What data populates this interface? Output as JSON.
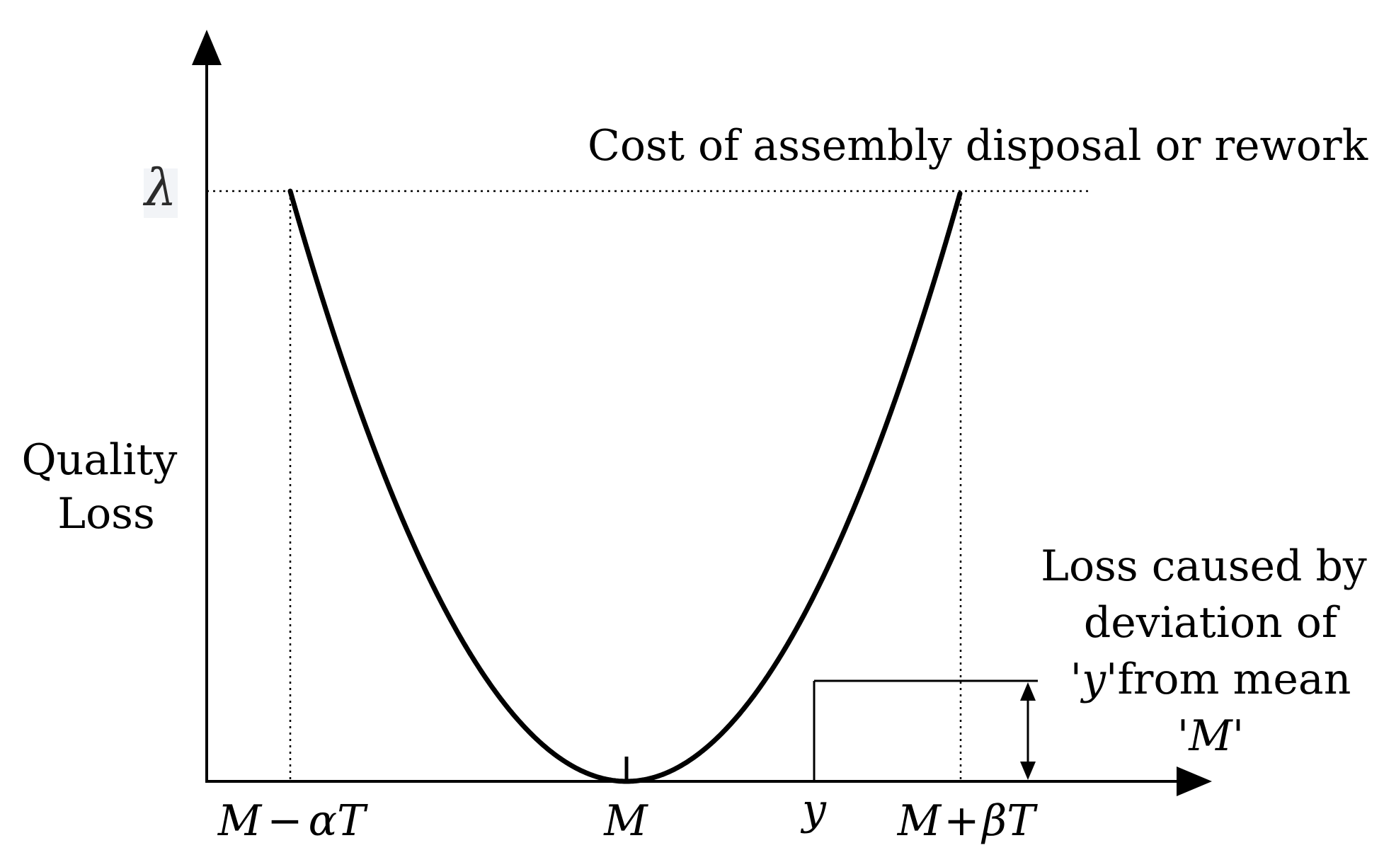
{
  "y_axis": {
    "label_line1": "Quality",
    "label_line2": "Loss",
    "max_symbol": "λ"
  },
  "threshold": {
    "label": "Cost of assembly disposal or rework"
  },
  "x_axis": {
    "lower_limit": {
      "symbol": "M",
      "operator": "−",
      "term": "αT"
    },
    "mean": {
      "symbol": "M"
    },
    "sample": {
      "symbol": "y"
    },
    "upper_limit": {
      "symbol": "M",
      "operator": "+",
      "term": "βT"
    }
  },
  "annotation": {
    "line1": "Loss caused by",
    "line2": "deviation of",
    "line3_prefix": "'",
    "line3_var": "y",
    "line3_suffix": "'from mean",
    "line4_prefix": "'",
    "line4_var": "M",
    "line4_suffix": "'"
  }
}
